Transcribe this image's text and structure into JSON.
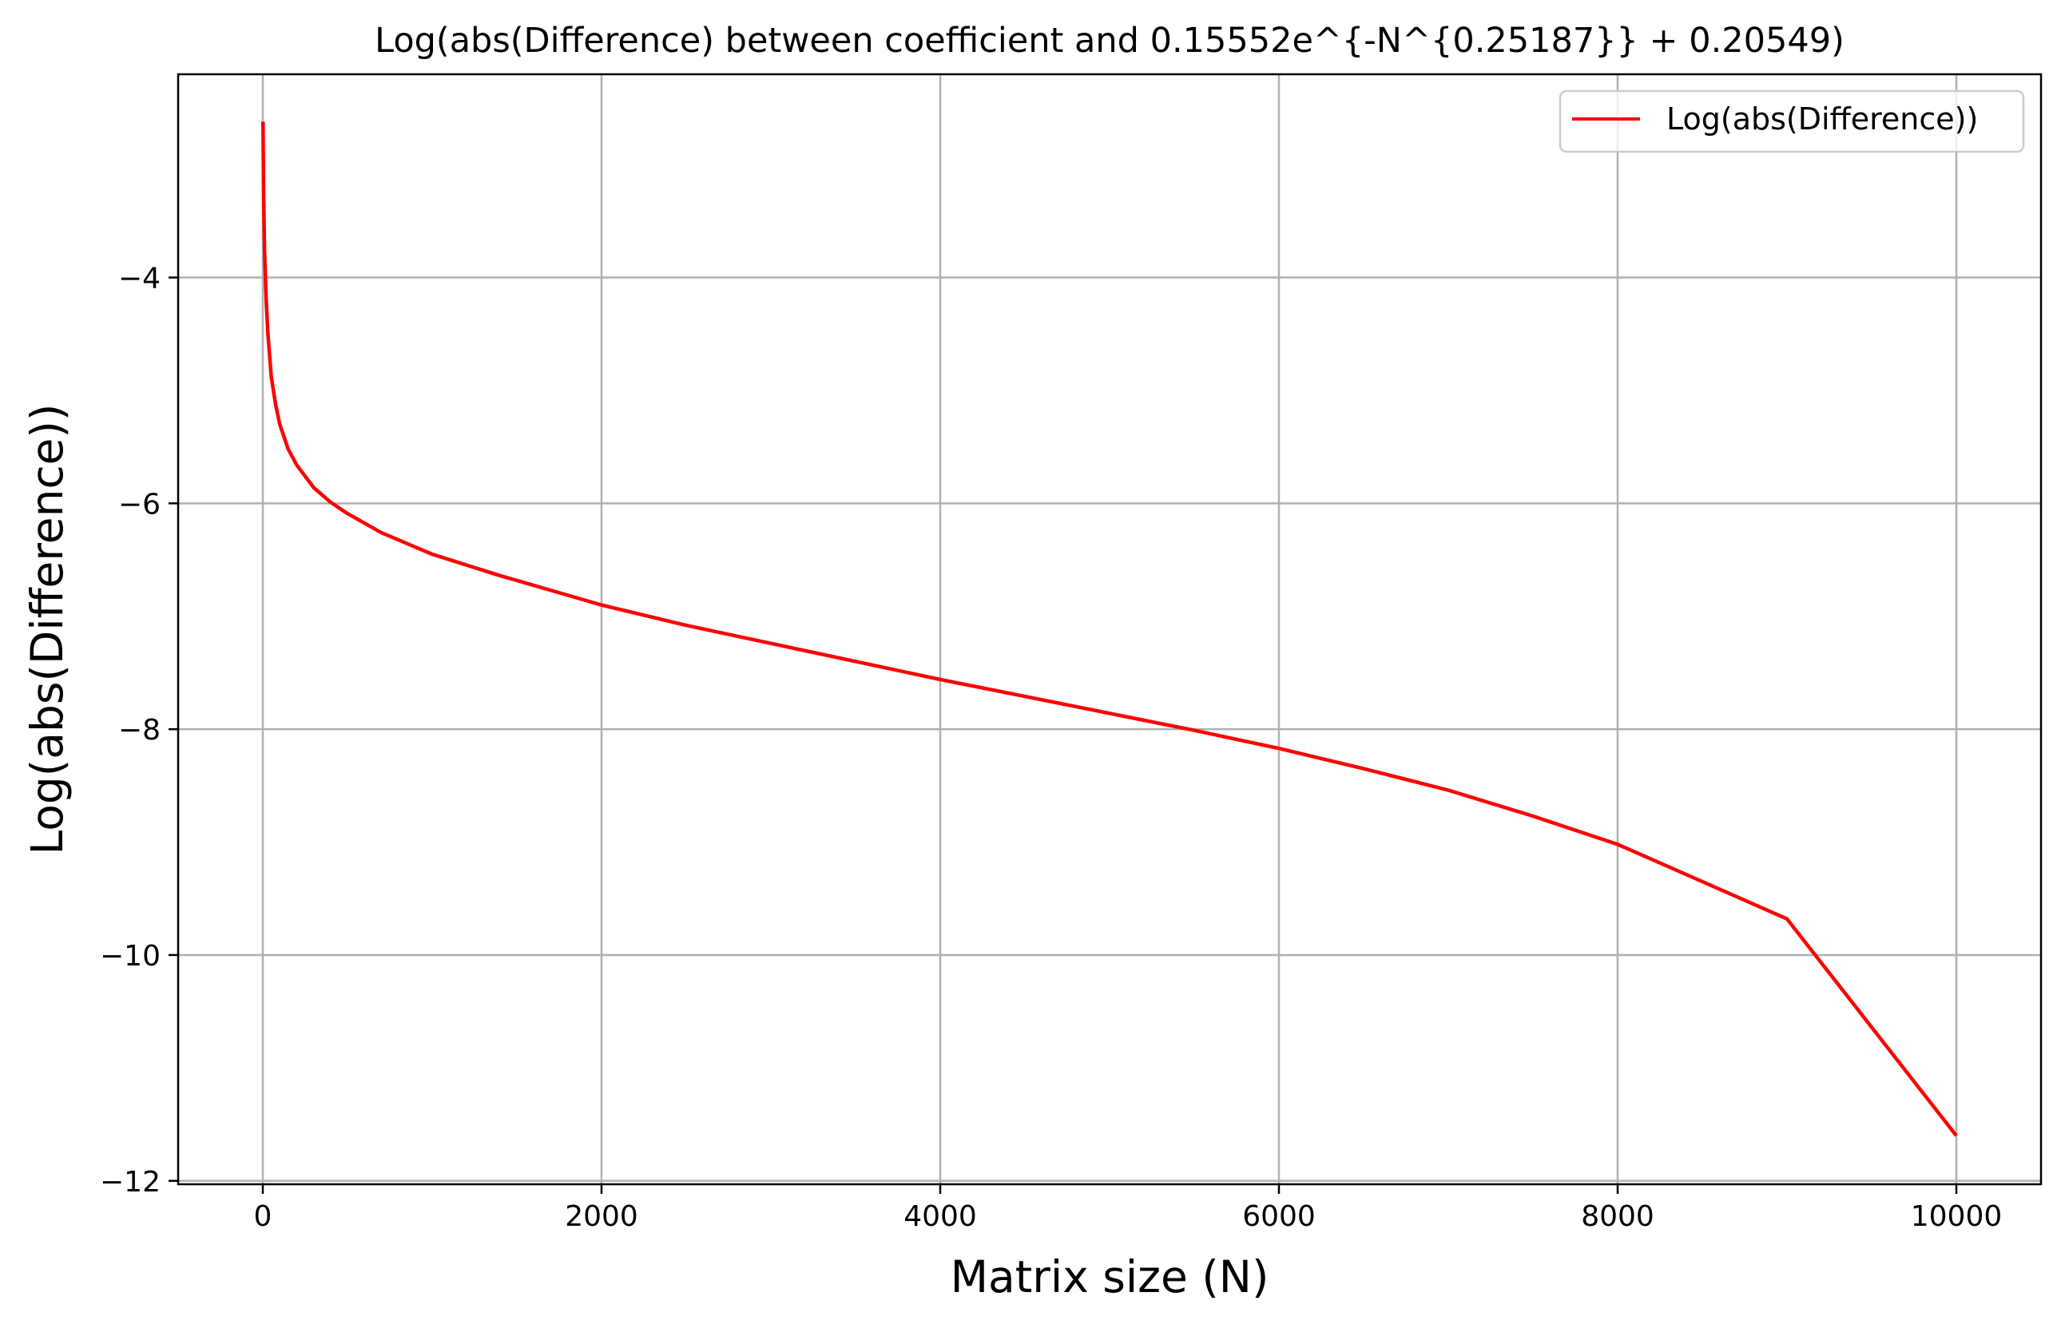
{
  "chart_data": {
    "type": "line",
    "title": "Log(abs(Difference) between coefficient and 0.15552e^{-N^{0.25187}} + 0.20549)",
    "xlabel": "Matrix size (N)",
    "ylabel": "Log(abs(Difference))",
    "xlim": [
      -500,
      10500
    ],
    "ylim": [
      -12.03,
      -2.2
    ],
    "xticks": [
      0,
      2000,
      4000,
      6000,
      8000,
      10000
    ],
    "xtick_labels": [
      "0",
      "2000",
      "4000",
      "6000",
      "8000",
      "10000"
    ],
    "yticks": [
      -12,
      -10,
      -8,
      -6,
      -4
    ],
    "ytick_labels": [
      "−12",
      "−10",
      "−8",
      "−6",
      "−4"
    ],
    "grid": true,
    "legend_position": "top-right",
    "series": [
      {
        "name": "Log(abs(Difference))",
        "color": "#ff0000",
        "x": [
          1,
          5,
          10,
          20,
          30,
          50,
          75,
          100,
          150,
          200,
          300,
          400,
          500,
          700,
          1000,
          1400,
          2000,
          2500,
          3000,
          3500,
          4000,
          4500,
          5000,
          5500,
          6000,
          6500,
          7000,
          7500,
          8000,
          8500,
          9000,
          10000
        ],
        "values": [
          -2.62,
          -3.3,
          -3.75,
          -4.2,
          -4.5,
          -4.88,
          -5.12,
          -5.3,
          -5.52,
          -5.66,
          -5.86,
          -5.99,
          -6.09,
          -6.26,
          -6.45,
          -6.64,
          -6.9,
          -7.08,
          -7.24,
          -7.4,
          -7.56,
          -7.71,
          -7.86,
          -8.01,
          -8.17,
          -8.35,
          -8.54,
          -8.77,
          -9.02,
          -9.35,
          -9.68,
          -11.6
        ]
      }
    ]
  }
}
